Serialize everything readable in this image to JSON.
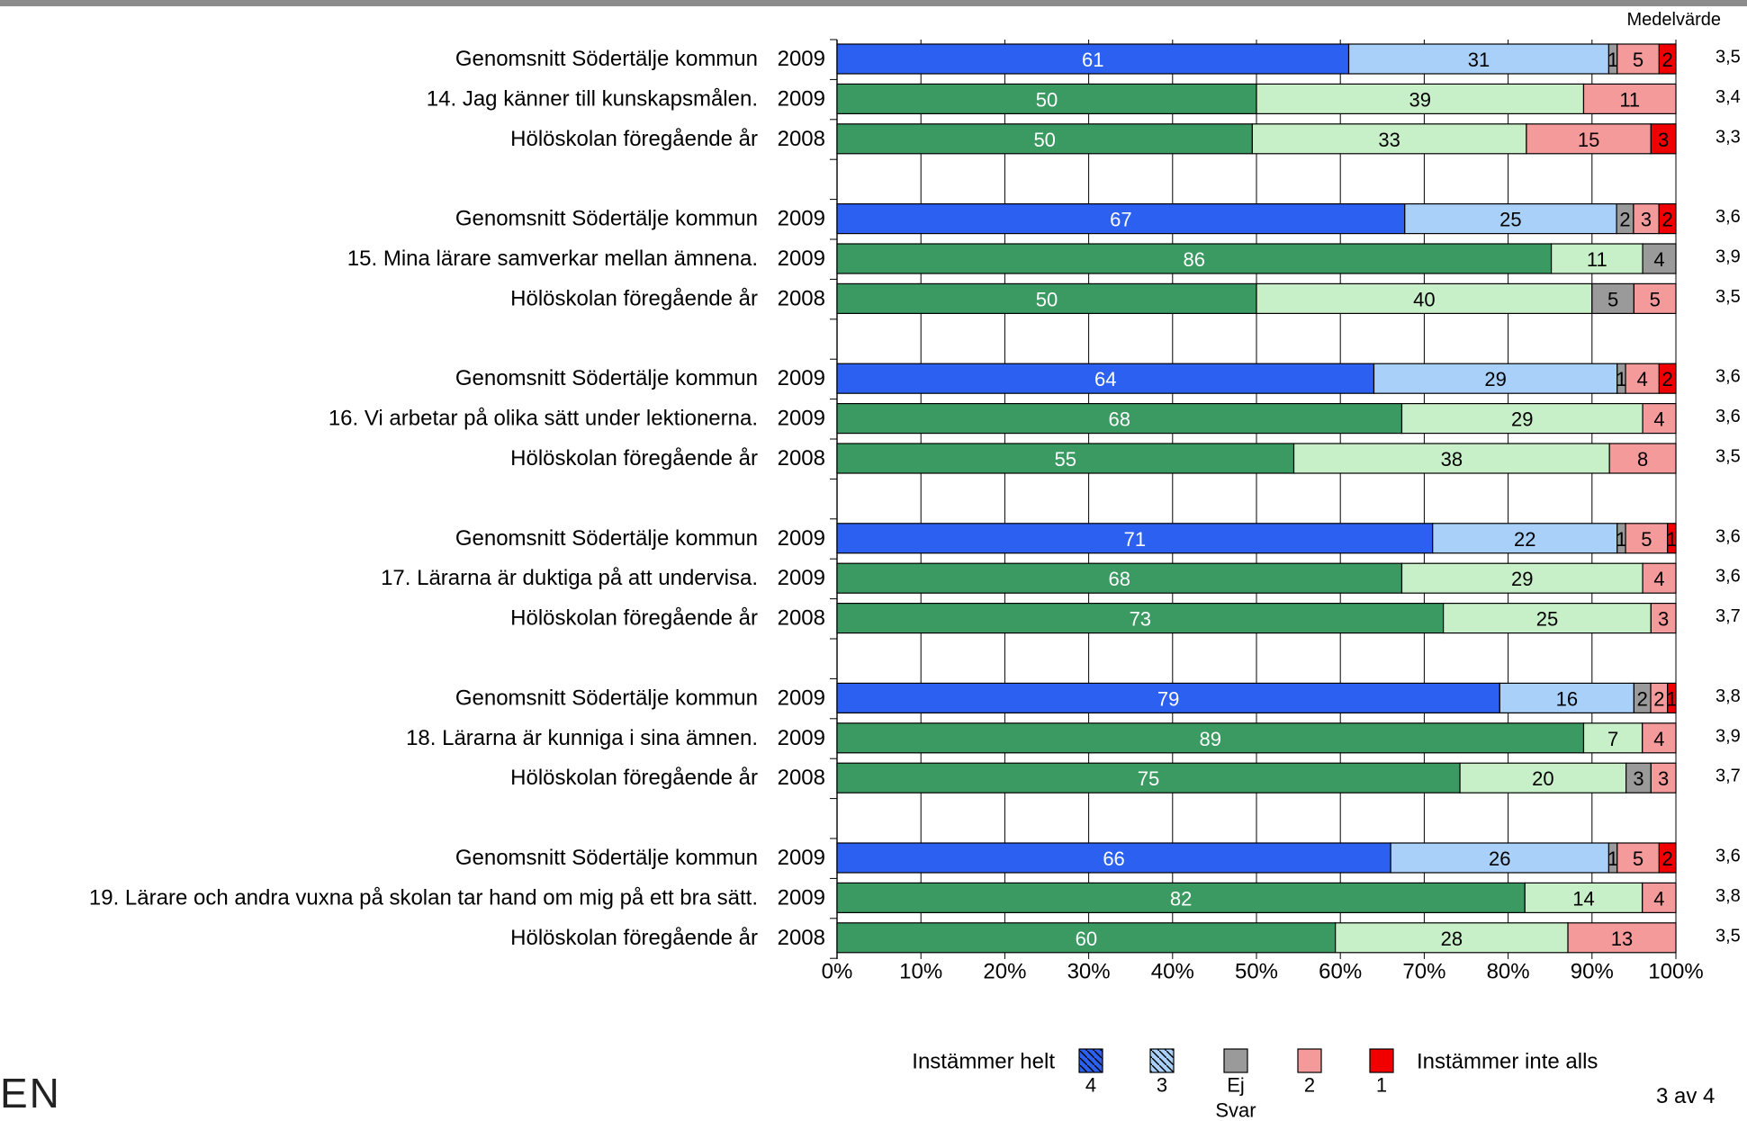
{
  "header": {
    "mean_label": "Medelvärde"
  },
  "logo_text": "EN",
  "page": {
    "number": "3 av 4"
  },
  "legend": {
    "left_label": "Instämmer helt",
    "right_label": "Instämmer inte alls",
    "items": [
      {
        "key": "4",
        "label": "4",
        "color": "#2b60f0",
        "pattern": "hatch"
      },
      {
        "key": "3",
        "label": "3",
        "color": "#a8d0f8",
        "pattern": "hatch"
      },
      {
        "key": "ej",
        "label": "Ej Svar",
        "color": "#9a9a9a",
        "pattern": "none"
      },
      {
        "key": "2",
        "label": "2",
        "color": "#f59a9a",
        "pattern": "none"
      },
      {
        "key": "1",
        "label": "1",
        "color": "#f00000",
        "pattern": "none"
      }
    ]
  },
  "chart_data": {
    "type": "bar",
    "orientation": "horizontal",
    "stacked": true,
    "percent_scale": true,
    "x_ticks": [
      "0%",
      "10%",
      "20%",
      "30%",
      "40%",
      "50%",
      "60%",
      "70%",
      "80%",
      "90%",
      "100%"
    ],
    "xlim": [
      0,
      100
    ],
    "grid": true,
    "series_order": [
      "4",
      "3",
      "ej",
      "2",
      "1"
    ],
    "school_colors": {
      "4": "#3a9a62",
      "3": "#c8f0c8"
    },
    "groups": [
      {
        "question": "14.  Jag känner till kunskapsmålen.",
        "rows": [
          {
            "label": "Genomsnitt Södertälje kommun",
            "year": "2009",
            "kind": "kommun",
            "values": [
              61,
              31,
              1,
              5,
              2
            ],
            "mean": "3,5"
          },
          {
            "label": "14.  Jag känner till kunskapsmålen.",
            "year": "2009",
            "kind": "school",
            "values": [
              50,
              39,
              0,
              11,
              0
            ],
            "mean": "3,4"
          },
          {
            "label": "Hölöskolan föregående år",
            "year": "2008",
            "kind": "school",
            "values": [
              50,
              33,
              0,
              15,
              3
            ],
            "mean": "3,3"
          }
        ]
      },
      {
        "question": "15.  Mina lärare samverkar mellan ämnena.",
        "rows": [
          {
            "label": "Genomsnitt Södertälje kommun",
            "year": "2009",
            "kind": "kommun",
            "values": [
              67,
              25,
              2,
              3,
              2
            ],
            "mean": "3,6"
          },
          {
            "label": "15.  Mina lärare samverkar mellan ämnena.",
            "year": "2009",
            "kind": "school",
            "values": [
              86,
              11,
              4,
              0,
              0
            ],
            "mean": "3,9"
          },
          {
            "label": "Hölöskolan föregående år",
            "year": "2008",
            "kind": "school",
            "values": [
              50,
              40,
              5,
              5,
              0
            ],
            "mean": "3,5"
          }
        ]
      },
      {
        "question": "16.  Vi arbetar på olika sätt under lektionerna.",
        "rows": [
          {
            "label": "Genomsnitt Södertälje kommun",
            "year": "2009",
            "kind": "kommun",
            "values": [
              64,
              29,
              1,
              4,
              2
            ],
            "mean": "3,6"
          },
          {
            "label": "16.  Vi arbetar på olika sätt under lektionerna.",
            "year": "2009",
            "kind": "school",
            "values": [
              68,
              29,
              0,
              4,
              0
            ],
            "mean": "3,6"
          },
          {
            "label": "Hölöskolan föregående år",
            "year": "2008",
            "kind": "school",
            "values": [
              55,
              38,
              0,
              8,
              0
            ],
            "mean": "3,5"
          }
        ]
      },
      {
        "question": "17.  Lärarna är duktiga på att undervisa.",
        "rows": [
          {
            "label": "Genomsnitt Södertälje kommun",
            "year": "2009",
            "kind": "kommun",
            "values": [
              71,
              22,
              1,
              5,
              1
            ],
            "mean": "3,6"
          },
          {
            "label": "17.  Lärarna är duktiga på att undervisa.",
            "year": "2009",
            "kind": "school",
            "values": [
              68,
              29,
              0,
              4,
              0
            ],
            "mean": "3,6"
          },
          {
            "label": "Hölöskolan föregående år",
            "year": "2008",
            "kind": "school",
            "values": [
              73,
              25,
              0,
              3,
              0
            ],
            "mean": "3,7"
          }
        ]
      },
      {
        "question": "18.  Lärarna är kunniga i sina ämnen.",
        "rows": [
          {
            "label": "Genomsnitt Södertälje kommun",
            "year": "2009",
            "kind": "kommun",
            "values": [
              79,
              16,
              2,
              2,
              1
            ],
            "mean": "3,8"
          },
          {
            "label": "18.  Lärarna är kunniga i sina ämnen.",
            "year": "2009",
            "kind": "school",
            "values": [
              89,
              7,
              0,
              4,
              0
            ],
            "mean": "3,9"
          },
          {
            "label": "Hölöskolan föregående år",
            "year": "2008",
            "kind": "school",
            "values": [
              75,
              20,
              3,
              3,
              0
            ],
            "mean": "3,7"
          }
        ]
      },
      {
        "question": "19.  Lärare och andra vuxna på skolan tar hand om mig på ett bra sätt.",
        "rows": [
          {
            "label": "Genomsnitt Södertälje kommun",
            "year": "2009",
            "kind": "kommun",
            "values": [
              66,
              26,
              1,
              5,
              2
            ],
            "mean": "3,6"
          },
          {
            "label": "19.  Lärare och andra vuxna på skolan tar hand om mig på ett bra sätt.",
            "year": "2009",
            "kind": "school",
            "values": [
              82,
              14,
              0,
              4,
              0
            ],
            "mean": "3,8"
          },
          {
            "label": "Hölöskolan föregående år",
            "year": "2008",
            "kind": "school",
            "values": [
              60,
              28,
              0,
              13,
              0
            ],
            "mean": "3,5"
          }
        ]
      }
    ]
  }
}
